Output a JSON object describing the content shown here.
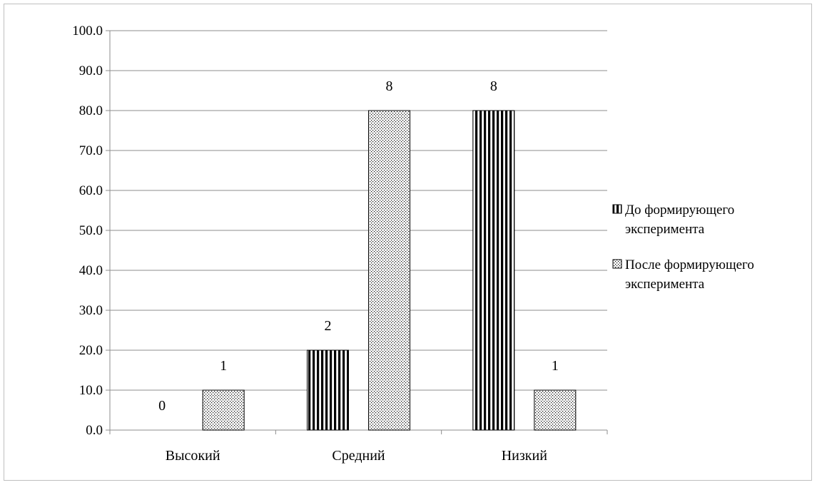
{
  "chart_data": {
    "type": "bar",
    "categories": [
      "Высокий",
      "Средний",
      "Низкий"
    ],
    "series": [
      {
        "name": "До формирующего эксперимента",
        "values": [
          0,
          20,
          80
        ],
        "data_labels": [
          "0",
          "2",
          "8"
        ],
        "pattern": "vertical-stripes"
      },
      {
        "name": "После формирующего эксперимента",
        "values": [
          10,
          80,
          10
        ],
        "data_labels": [
          "1",
          "8",
          "1"
        ],
        "pattern": "dots"
      }
    ],
    "ylim": [
      0,
      100
    ],
    "yticks": [
      "0.0",
      "10.0",
      "20.0",
      "30.0",
      "40.0",
      "50.0",
      "60.0",
      "70.0",
      "80.0",
      "90.0",
      "100.0"
    ],
    "grid": true,
    "legend_position": "right"
  },
  "legend": {
    "items": [
      {
        "line1": "До формирующего",
        "line2": "эксперимента"
      },
      {
        "line1": "После формирующего",
        "line2": "эксперимента"
      }
    ]
  }
}
